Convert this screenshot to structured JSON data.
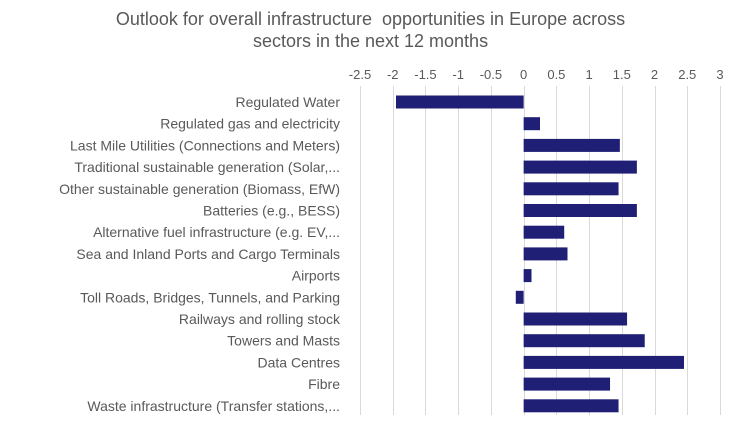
{
  "chart_data": {
    "type": "bar",
    "orientation": "horizontal",
    "title_lines": [
      "Outlook for overall infrastructure  opportunities in Europe across",
      "sectors in the next 12 months"
    ],
    "categories": [
      "Regulated Water",
      "Regulated gas and electricity",
      "Last Mile Utilities (Connections and Meters)",
      "Traditional sustainable generation (Solar,...",
      "Other sustainable generation (Biomass, EfW)",
      "Batteries (e.g., BESS)",
      "Alternative fuel infrastructure (e.g. EV,...",
      "Sea and Inland Ports and Cargo Terminals",
      "Airports",
      "Toll Roads, Bridges, Tunnels, and Parking",
      "Railways and rolling stock",
      "Towers and Masts",
      "Data Centres",
      "Fibre",
      "Waste infrastructure (Transfer stations,..."
    ],
    "values": [
      -1.95,
      0.25,
      1.47,
      1.73,
      1.45,
      1.73,
      0.62,
      0.67,
      0.12,
      -0.12,
      1.58,
      1.85,
      2.45,
      1.32,
      1.45
    ],
    "xlim": [
      -2.5,
      3
    ],
    "xticks": [
      -2.5,
      -2,
      -1.5,
      -1,
      -0.5,
      0,
      0.5,
      1,
      1.5,
      2,
      2.5,
      3
    ],
    "xtick_labels": [
      "-2.5",
      "-2",
      "-1.5",
      "-1",
      "-0.5",
      "0",
      "0.5",
      "1",
      "1.5",
      "2",
      "2.5",
      "3"
    ],
    "xaxis_position": "top",
    "grid": true,
    "legend": "none",
    "bar_color": "#1f1f75",
    "grid_color": "#d9d9d9",
    "text_color": "#595959"
  }
}
